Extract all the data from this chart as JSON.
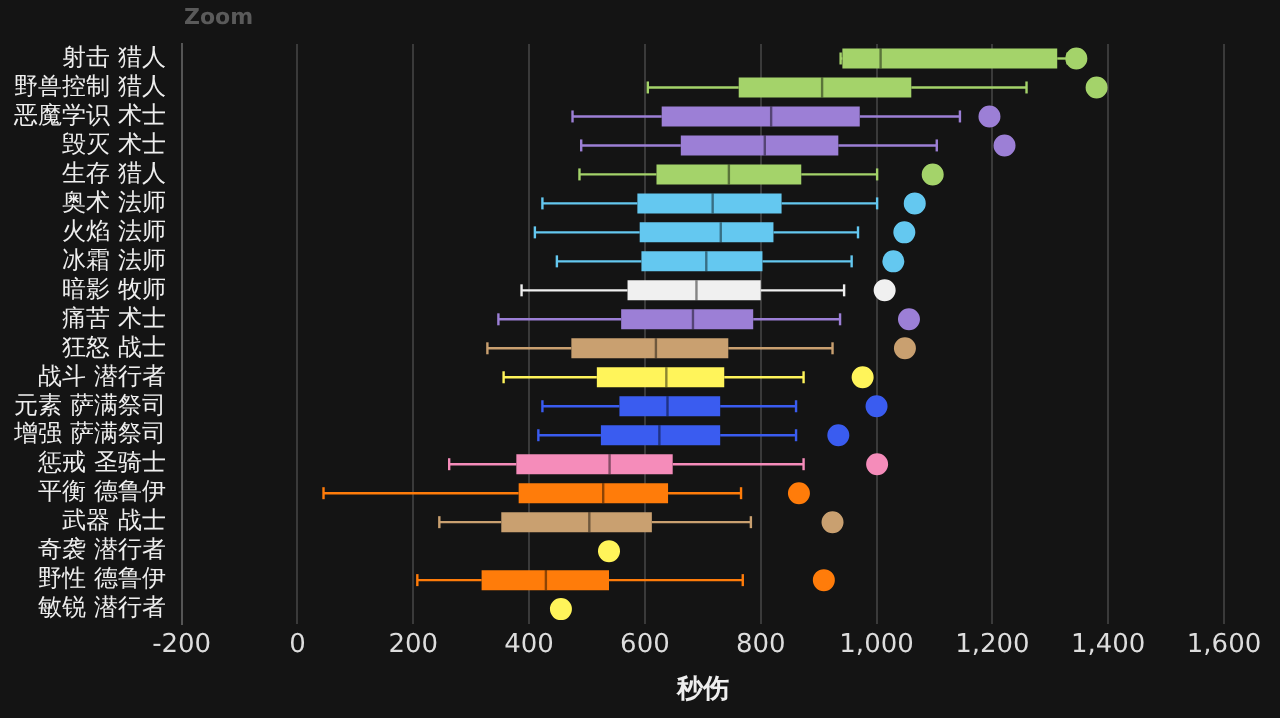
{
  "chart_data": {
    "type": "box",
    "orientation": "horizontal",
    "xlabel": "秒伤",
    "annotations": [
      "Zoom"
    ],
    "grid": "x",
    "legend": false,
    "marker": "circle",
    "categories": [
      "射击 猎人",
      "野兽控制 猎人",
      "恶魔学识 术士",
      "毁灭 术士",
      "生存 猎人",
      "奥术 法师",
      "火焰 法师",
      "冰霜 法师",
      "暗影 牧师",
      "痛苦 术士",
      "狂怒 战士",
      "战斗 潜行者",
      "元素 萨满祭司",
      "增强 萨满祭司",
      "惩戒 圣骑士",
      "平衡 德鲁伊",
      "武器 战士",
      "奇袭 潜行者",
      "野性 德鲁伊",
      "敏锐 潜行者"
    ],
    "colors": [
      "#a4d36a",
      "#a4d36a",
      "#9c7fd6",
      "#9c7fd6",
      "#a4d36a",
      "#64c8f0",
      "#64c8f0",
      "#64c8f0",
      "#f0f0f0",
      "#9c7fd6",
      "#c9a070",
      "#fff45a",
      "#3a5cf0",
      "#3a5cf0",
      "#f58cba",
      "#ff7c0a",
      "#c9a070",
      null,
      "#ff7c0a",
      null
    ],
    "boxes": [
      {
        "low": 938,
        "q1": 941,
        "median": 1007,
        "q3": 1312,
        "high": 1330
      },
      {
        "low": 605,
        "q1": 762,
        "median": 906,
        "q3": 1060,
        "high": 1259
      },
      {
        "low": 475,
        "q1": 629,
        "median": 818,
        "q3": 971,
        "high": 1144
      },
      {
        "low": 490,
        "q1": 662,
        "median": 807,
        "q3": 934,
        "high": 1104
      },
      {
        "low": 487,
        "q1": 620,
        "median": 745,
        "q3": 870,
        "high": 1001
      },
      {
        "low": 423,
        "q1": 587,
        "median": 717,
        "q3": 836,
        "high": 1001
      },
      {
        "low": 410,
        "q1": 591,
        "median": 731,
        "q3": 822,
        "high": 968
      },
      {
        "low": 448,
        "q1": 594,
        "median": 706,
        "q3": 803,
        "high": 957
      },
      {
        "low": 387,
        "q1": 570,
        "median": 689,
        "q3": 800,
        "high": 944
      },
      {
        "low": 347,
        "q1": 559,
        "median": 683,
        "q3": 787,
        "high": 937
      },
      {
        "low": 328,
        "q1": 473,
        "median": 619,
        "q3": 744,
        "high": 924
      },
      {
        "low": 356,
        "q1": 517,
        "median": 637,
        "q3": 737,
        "high": 874
      },
      {
        "low": 423,
        "q1": 556,
        "median": 639,
        "q3": 730,
        "high": 861
      },
      {
        "low": 416,
        "q1": 524,
        "median": 625,
        "q3": 730,
        "high": 861
      },
      {
        "low": 262,
        "q1": 378,
        "median": 539,
        "q3": 648,
        "high": 874
      },
      {
        "low": 45,
        "q1": 382,
        "median": 528,
        "q3": 640,
        "high": 766
      },
      {
        "low": 245,
        "q1": 352,
        "median": 504,
        "q3": 612,
        "high": 783
      },
      null,
      {
        "low": 207,
        "q1": 318,
        "median": 429,
        "q3": 538,
        "high": 769
      },
      null
    ],
    "series": [
      {
        "type": "scatter",
        "x": [
          "射击 猎人",
          "野兽控制 猎人",
          "恶魔学识 术士",
          "毁灭 术士",
          "生存 猎人",
          "奥术 法师",
          "火焰 法师",
          "冰霜 法师",
          "暗影 牧师",
          "痛苦 术士",
          "狂怒 战士",
          "战斗 潜行者",
          "元素 萨满祭司",
          "增强 萨满祭司",
          "惩戒 圣骑士",
          "平衡 德鲁伊",
          "武器 战士",
          "奇袭 潜行者",
          "野性 德鲁伊",
          "敏锐 潜行者"
        ],
        "values": [
          1345,
          1380,
          1195,
          1221,
          1097,
          1066,
          1048,
          1029,
          1014,
          1056,
          1049,
          976,
          1000,
          934,
          1001,
          866,
          924,
          538,
          909,
          455
        ],
        "colors": [
          "#a4d36a",
          "#a4d36a",
          "#9c7fd6",
          "#9c7fd6",
          "#a4d36a",
          "#64c8f0",
          "#64c8f0",
          "#64c8f0",
          "#f0f0f0",
          "#9c7fd6",
          "#c9a070",
          "#fff45a",
          "#3a5cf0",
          "#3a5cf0",
          "#f58cba",
          "#ff7c0a",
          "#c9a070",
          "#fff45a",
          "#ff7c0a",
          "#fff45a"
        ]
      }
    ],
    "xlim": [
      -200,
      1600
    ],
    "xticks": [
      -200,
      0,
      200,
      400,
      600,
      800,
      {
        "value": 1000,
        "label": "1,000"
      },
      {
        "value": 1200,
        "label": "1,200"
      },
      {
        "value": 1400,
        "label": "1,400"
      },
      {
        "value": 1600,
        "label": "1,600"
      }
    ]
  }
}
